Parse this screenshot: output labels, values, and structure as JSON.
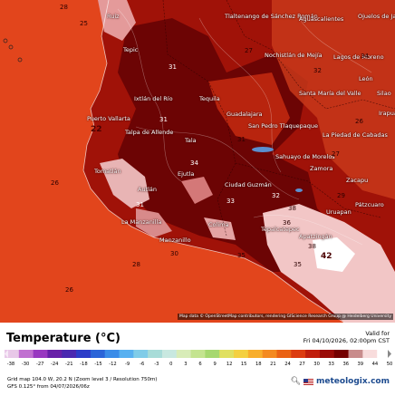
{
  "legend": {
    "title": "Temperature (°C)",
    "valid_for": "Valid for",
    "valid_time": "Fri 04/10/2026, 02:00pm CST",
    "scale_ticks": [
      "-38",
      "-30",
      "-27",
      "-24",
      "-21",
      "-18",
      "-15",
      "-12",
      "-9",
      "-6",
      "-3",
      "0",
      "3",
      "6",
      "9",
      "12",
      "15",
      "18",
      "21",
      "24",
      "27",
      "30",
      "33",
      "36",
      "39",
      "44",
      "50"
    ],
    "scale_colors": [
      "#e8c8e8",
      "#c070d0",
      "#9838c0",
      "#6820a8",
      "#4a28b0",
      "#2c3cc8",
      "#2a64d8",
      "#3a8ce8",
      "#58b0f0",
      "#80cce8",
      "#a8dcd8",
      "#c8e8e0",
      "#d8ecb8",
      "#c4e490",
      "#a6d870",
      "#e0e060",
      "#f4d040",
      "#f8ae2c",
      "#f48a20",
      "#ea6214",
      "#dc3c10",
      "#c01e0c",
      "#9a0c08",
      "#740000",
      "#c88c8c",
      "#f8dcdc",
      "#ffffff"
    ]
  },
  "footer": {
    "grid_info": "Grid map 104.0 W, 20.2 N (Zoom level 3 / Resolution 750m)",
    "run_info": "GFS 0.125° from 04/07/2026/06z",
    "brand": "meteologix.com",
    "search_icon": "magnifier-icon",
    "flag_icon": "us-flag-icon"
  },
  "map": {
    "attribution": "Map data © OpenStreetMap contributors, rendering GIScience Research Group @ Heidelberg University",
    "colors": {
      "ocean": "#e2451c",
      "land_hot": "#a01208",
      "land_very_hot": "#6c0404",
      "land_peak": "#f2c6c6",
      "land_cool": "#c8381a"
    },
    "cities": [
      {
        "name": "Tlaltenango de Sánchez Román"
      },
      {
        "name": "Aguascalientes"
      },
      {
        "name": "Ojuelos de Jalisco"
      },
      {
        "name": "Nochistlán de Mejía"
      },
      {
        "name": "Lagos de Moreno"
      },
      {
        "name": "León"
      },
      {
        "name": "Santa María del Valle"
      },
      {
        "name": "Silao"
      },
      {
        "name": "Irapuato"
      },
      {
        "name": "Tepic"
      },
      {
        "name": "Ruiz"
      },
      {
        "name": "Ixtlán del Río"
      },
      {
        "name": "Tequila"
      },
      {
        "name": "Guadalajara"
      },
      {
        "name": "San Pedro Tlaquepaque"
      },
      {
        "name": "La Piedad de Cabadas"
      },
      {
        "name": "Puerto Vallarta"
      },
      {
        "name": "Talpa de Allende"
      },
      {
        "name": "Tala"
      },
      {
        "name": "Sahuayo de Morelos"
      },
      {
        "name": "Zamora"
      },
      {
        "name": "Zacapu"
      },
      {
        "name": "Tomatlán"
      },
      {
        "name": "Ejutla"
      },
      {
        "name": "Autlán"
      },
      {
        "name": "Ciudad Guzmán"
      },
      {
        "name": "Pátzcuaro"
      },
      {
        "name": "Uruapan"
      },
      {
        "name": "La Manzanilla"
      },
      {
        "name": "Manzanillo"
      },
      {
        "name": "Colima"
      },
      {
        "name": "Tepalcatepec"
      },
      {
        "name": "Apatzingán"
      }
    ],
    "temperature_values": [
      {
        "value": "28"
      },
      {
        "value": "25"
      },
      {
        "value": "27"
      },
      {
        "value": "31"
      },
      {
        "value": "32"
      },
      {
        "value": "22"
      },
      {
        "value": "26"
      },
      {
        "value": "31"
      },
      {
        "value": "31"
      },
      {
        "value": "27"
      },
      {
        "value": "34"
      },
      {
        "value": "26"
      },
      {
        "value": "33"
      },
      {
        "value": "32"
      },
      {
        "value": "29"
      },
      {
        "value": "31"
      },
      {
        "value": "35"
      },
      {
        "value": "30"
      },
      {
        "value": "36"
      },
      {
        "value": "38"
      },
      {
        "value": "38"
      },
      {
        "value": "42"
      },
      {
        "value": "35"
      },
      {
        "value": "26"
      },
      {
        "value": "28"
      },
      {
        "value": "34"
      }
    ]
  }
}
